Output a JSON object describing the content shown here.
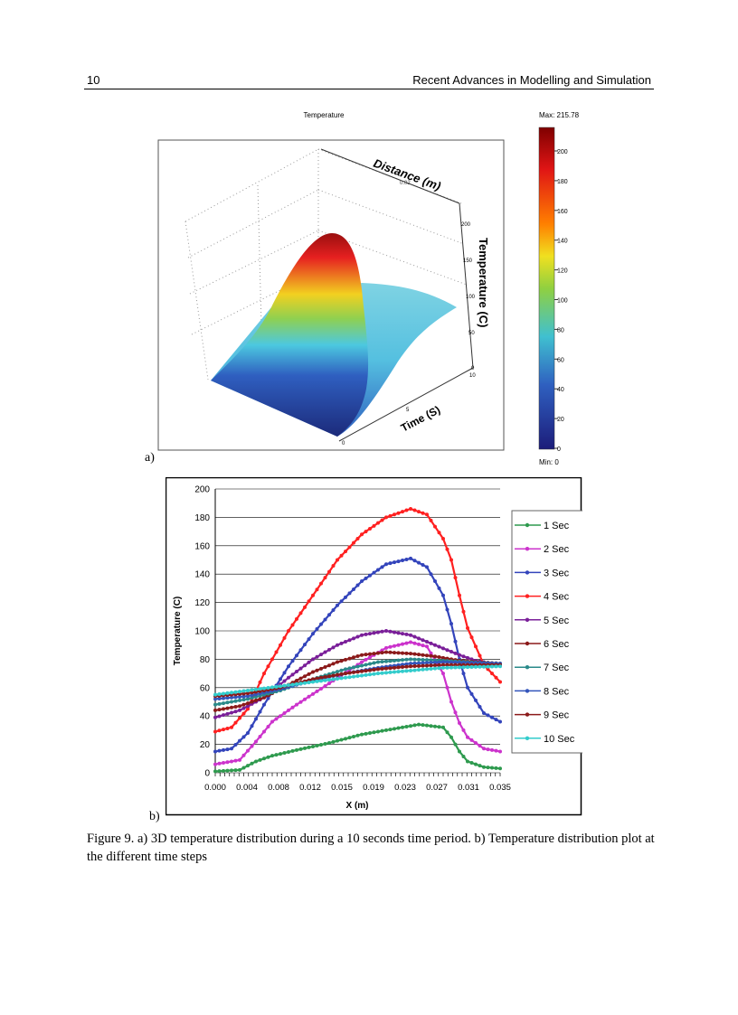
{
  "header": {
    "page_number": "10",
    "running_title": "Recent Advances in Modelling and Simulation"
  },
  "figure_a": {
    "panel_label": "a)",
    "title": "Temperature",
    "max_label": "Max: 215.785",
    "min_label": "Min: 0",
    "axis_distance": "Distance (m)",
    "axis_time": "Time (S)",
    "axis_temperature": "Temperature (C)",
    "distance_tick": "0.02",
    "time_ticks": [
      "0",
      "5",
      "10"
    ],
    "temp_ticks": [
      "0",
      "50",
      "100",
      "150",
      "200"
    ],
    "colorbar_ticks": [
      "0",
      "20",
      "40",
      "60",
      "80",
      "100",
      "120",
      "140",
      "160",
      "180",
      "200"
    ],
    "colormap": [
      "#00007f",
      "#0000ff",
      "#00bfff",
      "#7fff7f",
      "#ffff00",
      "#ff7f00",
      "#ff0000",
      "#7f0000"
    ]
  },
  "figure_b": {
    "panel_label": "b)"
  },
  "chart_data": {
    "type": "line",
    "title": "",
    "xlabel": "X (m)",
    "ylabel": "Temperature (C)",
    "xlim": [
      0,
      0.035
    ],
    "ylim": [
      0,
      200
    ],
    "yticks": [
      "0",
      "20",
      "40",
      "60",
      "80",
      "100",
      "120",
      "140",
      "160",
      "180",
      "200"
    ],
    "xticks": [
      "0.000",
      "0.004",
      "0.008",
      "0.012",
      "0.015",
      "0.019",
      "0.023",
      "0.027",
      "0.031",
      "0.035"
    ],
    "grid": "horizontal",
    "legend": "right",
    "series": [
      {
        "name": "1 Sec",
        "color": "#2e9a4e",
        "marker": "diamond",
        "x": [
          0,
          0.003,
          0.005,
          0.007,
          0.01,
          0.014,
          0.018,
          0.022,
          0.025,
          0.028,
          0.029,
          0.03,
          0.031,
          0.033,
          0.035
        ],
        "y": [
          1,
          2,
          8,
          12,
          16,
          21,
          27,
          31,
          34,
          32,
          25,
          15,
          8,
          4,
          3
        ]
      },
      {
        "name": "2 Sec",
        "color": "#cc33cc",
        "marker": "square",
        "x": [
          0,
          0.003,
          0.005,
          0.007,
          0.01,
          0.014,
          0.018,
          0.021,
          0.024,
          0.026,
          0.028,
          0.029,
          0.03,
          0.031,
          0.033,
          0.035
        ],
        "y": [
          6,
          9,
          22,
          36,
          48,
          63,
          78,
          88,
          92,
          89,
          70,
          50,
          35,
          25,
          17,
          15
        ]
      },
      {
        "name": "3 Sec",
        "color": "#3344bb",
        "marker": "triangle",
        "x": [
          0,
          0.002,
          0.004,
          0.006,
          0.009,
          0.012,
          0.015,
          0.018,
          0.021,
          0.024,
          0.026,
          0.028,
          0.029,
          0.03,
          0.031,
          0.033,
          0.035
        ],
        "y": [
          15,
          17,
          28,
          48,
          75,
          98,
          118,
          135,
          147,
          151,
          145,
          125,
          105,
          80,
          60,
          42,
          36
        ]
      },
      {
        "name": "4 Sec",
        "color": "#ff2020",
        "marker": "x",
        "x": [
          0,
          0.002,
          0.004,
          0.006,
          0.009,
          0.012,
          0.015,
          0.018,
          0.021,
          0.024,
          0.026,
          0.028,
          0.029,
          0.03,
          0.031,
          0.033,
          0.035
        ],
        "y": [
          29,
          32,
          45,
          70,
          100,
          125,
          150,
          168,
          180,
          186,
          182,
          165,
          150,
          125,
          102,
          76,
          64
        ]
      },
      {
        "name": "5 Sec",
        "color": "#7a1f99",
        "marker": "circle",
        "x": [
          0,
          0.003,
          0.006,
          0.009,
          0.012,
          0.015,
          0.018,
          0.021,
          0.024,
          0.027,
          0.03,
          0.032,
          0.035
        ],
        "y": [
          39,
          44,
          53,
          67,
          80,
          90,
          97,
          100,
          97,
          90,
          83,
          79,
          76
        ]
      },
      {
        "name": "6 Sec",
        "color": "#8b1a1a",
        "marker": "circle",
        "x": [
          0,
          0.003,
          0.006,
          0.009,
          0.012,
          0.015,
          0.018,
          0.021,
          0.024,
          0.027,
          0.03,
          0.035
        ],
        "y": [
          44,
          47,
          53,
          62,
          71,
          78,
          83,
          85,
          84,
          82,
          79,
          77
        ]
      },
      {
        "name": "7 Sec",
        "color": "#2a8a8a",
        "marker": "plus",
        "x": [
          0,
          0.004,
          0.008,
          0.012,
          0.016,
          0.02,
          0.024,
          0.028,
          0.031,
          0.035
        ],
        "y": [
          48,
          52,
          58,
          66,
          73,
          78,
          80,
          79,
          78,
          77
        ]
      },
      {
        "name": "8 Sec",
        "color": "#3355bb",
        "marker": "dash",
        "x": [
          0,
          0.004,
          0.008,
          0.012,
          0.016,
          0.02,
          0.024,
          0.028,
          0.035
        ],
        "y": [
          52,
          54,
          59,
          65,
          70,
          74,
          77,
          78,
          77
        ]
      },
      {
        "name": "9 Sec",
        "color": "#8b1a1a",
        "marker": "dash",
        "x": [
          0,
          0.004,
          0.008,
          0.012,
          0.016,
          0.02,
          0.024,
          0.028,
          0.035
        ],
        "y": [
          54,
          56,
          60,
          66,
          70,
          73,
          75,
          76,
          76
        ]
      },
      {
        "name": "10 Sec",
        "color": "#33cccc",
        "marker": "square",
        "x": [
          0,
          0.004,
          0.008,
          0.012,
          0.016,
          0.02,
          0.024,
          0.028,
          0.035
        ],
        "y": [
          55,
          58,
          61,
          64,
          67,
          70,
          72,
          74,
          75
        ]
      }
    ]
  },
  "caption": "Figure 9. a) 3D temperature distribution during a 10 seconds time period. b) Temperature distribution plot at the different time steps"
}
